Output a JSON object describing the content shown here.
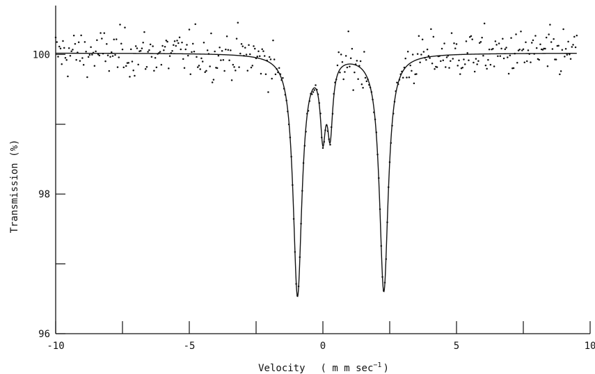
{
  "chart_data": {
    "type": "scatter",
    "xlabel": "Velocity",
    "xlabel_unit_open": "( m m  sec",
    "xlabel_unit_exp": "−1",
    "xlabel_unit_close": ")",
    "ylabel": "Transmission (%)",
    "xlim": [
      -10,
      10
    ],
    "ylim": [
      96,
      100.7
    ],
    "x_ticks": [
      -10,
      -5,
      0,
      5,
      10
    ],
    "x_tick_labels": [
      "-10",
      "-5",
      "0",
      "5",
      "10"
    ],
    "x_minor_ticks": [
      -7.5,
      -2.5,
      2.5,
      7.5
    ],
    "y_ticks": [
      96,
      98,
      100
    ],
    "y_tick_labels": [
      "96",
      "98",
      "100"
    ],
    "y_minor_ticks": [
      97,
      99
    ],
    "grid": false,
    "legend": "none",
    "series": [
      {
        "kind": "points",
        "baseline": 100.0,
        "noise_sd": 0.17,
        "x_range": [
          -10,
          9.5
        ],
        "count": 430
      },
      {
        "kind": "fit-curve",
        "baseline": 100.02,
        "x_range": [
          -10,
          9.5
        ],
        "components": [
          {
            "center": -0.95,
            "hwhm": 0.2,
            "depth": 3.45
          },
          {
            "center": 2.28,
            "hwhm": 0.2,
            "depth": 3.4
          },
          {
            "center": 0.0,
            "hwhm": 0.12,
            "depth": 1.0
          },
          {
            "center": 0.27,
            "hwhm": 0.12,
            "depth": 1.0
          }
        ]
      }
    ]
  }
}
